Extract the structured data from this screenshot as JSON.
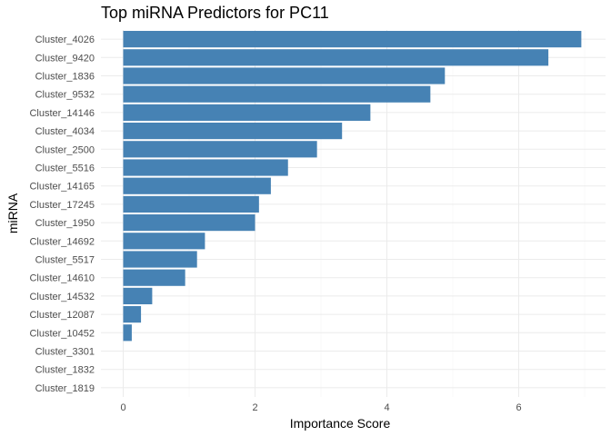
{
  "chart_data": {
    "type": "bar",
    "orientation": "horizontal",
    "title": "Top miRNA Predictors for PC11",
    "xlabel": "Importance Score",
    "ylabel": "miRNA",
    "categories": [
      "Cluster_4026",
      "Cluster_9420",
      "Cluster_1836",
      "Cluster_9532",
      "Cluster_14146",
      "Cluster_4034",
      "Cluster_2500",
      "Cluster_5516",
      "Cluster_14165",
      "Cluster_17245",
      "Cluster_1950",
      "Cluster_14692",
      "Cluster_5517",
      "Cluster_14610",
      "Cluster_14532",
      "Cluster_12087",
      "Cluster_10452",
      "Cluster_3301",
      "Cluster_1832",
      "Cluster_1819"
    ],
    "values": [
      6.95,
      6.45,
      4.88,
      4.66,
      3.75,
      3.32,
      2.94,
      2.5,
      2.24,
      2.06,
      2.0,
      1.24,
      1.12,
      0.94,
      0.44,
      0.27,
      0.13,
      0.0,
      0.0,
      0.0
    ],
    "xlim": [
      -0.35,
      7.3
    ],
    "xticks": [
      0,
      2,
      4,
      6
    ],
    "xtick_labels": [
      "0",
      "2",
      "4",
      "6"
    ],
    "grid": true,
    "bar_color": "#4682b4"
  }
}
